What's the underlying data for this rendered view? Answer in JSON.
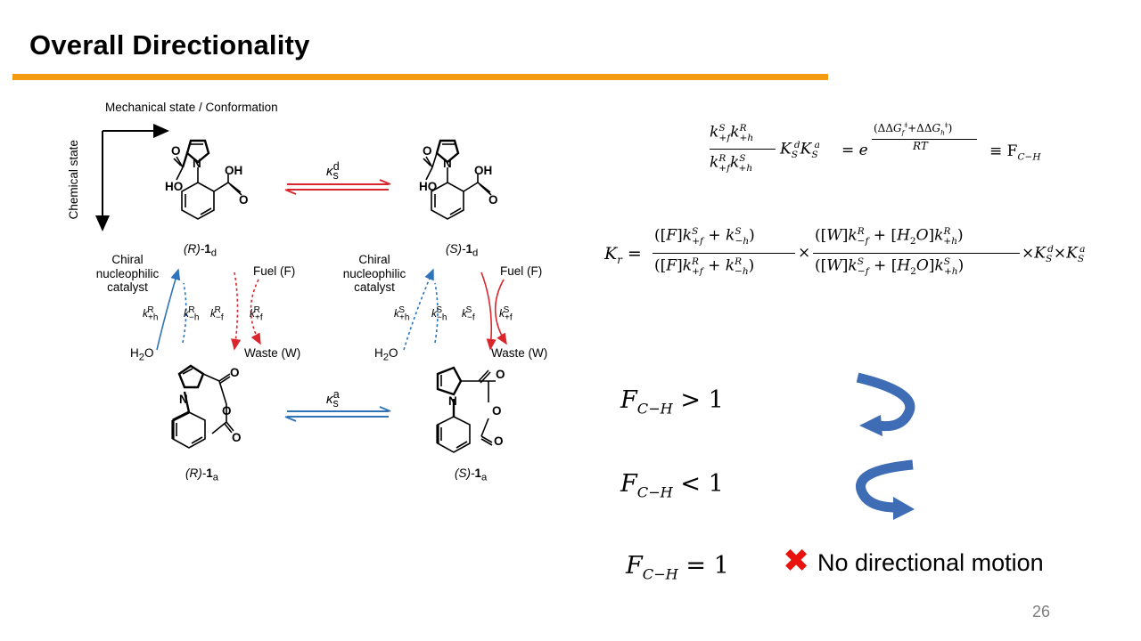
{
  "slide": {
    "title": "Overall Directionality",
    "page_number": "26",
    "accent_color": "#f39c12"
  },
  "diagram": {
    "axis_x_label": "Mechanical state / Conformation",
    "axis_y_label": "Chemical state",
    "rate_ks_d": "κ",
    "rate_ks_d_sub": "s",
    "rate_ks_d_sup": "d",
    "rate_ks_a": "κ",
    "rate_ks_a_sub": "s",
    "rate_ks_a_sup": "a",
    "compounds": {
      "r_1d": {
        "prefix": "(R)-",
        "num": "1",
        "sub": "d"
      },
      "s_1d": {
        "prefix": "(S)-",
        "num": "1",
        "sub": "d"
      },
      "r_1a": {
        "prefix": "(R)-",
        "num": "1",
        "sub": "a"
      },
      "s_1a": {
        "prefix": "(S)-",
        "num": "1",
        "sub": "a"
      }
    },
    "catalyst_label_left": "Chiral\nnucleophilic\ncatalyst",
    "catalyst_label_right": "Chiral\nnucleophilic\ncatalyst",
    "fuel_label": "Fuel (F)",
    "waste_label": "Waste (W)",
    "water_label": "H2O",
    "atoms": {
      "O": "O",
      "OH": "OH",
      "HO": "HO",
      "N": "N"
    },
    "left_rates": [
      "k+hR",
      "k−hR",
      "k−fR",
      "k+fR"
    ],
    "right_rates": [
      "k+hS",
      "k−hS",
      "k−fS",
      "k+fS"
    ],
    "colors": {
      "red": "#d9262c",
      "blue": "#2f73b8",
      "arrow_blue": "#3e6db5"
    }
  },
  "equations": {
    "eq1_rhs": "≡ F",
    "eq1_rhs_sub": "C−H",
    "eq2_lhs": "K",
    "eq2_lhs_sub": "r",
    "cond1": {
      "F": "F",
      "sub": "C−H",
      "rel": " > 1"
    },
    "cond2": {
      "F": "F",
      "sub": "C−H",
      "rel": " < 1"
    },
    "cond3": {
      "F": "F",
      "sub": "C−H",
      "rel": " = 1"
    }
  },
  "no_motion": {
    "icon": "cross-icon",
    "text": "No directional motion"
  }
}
